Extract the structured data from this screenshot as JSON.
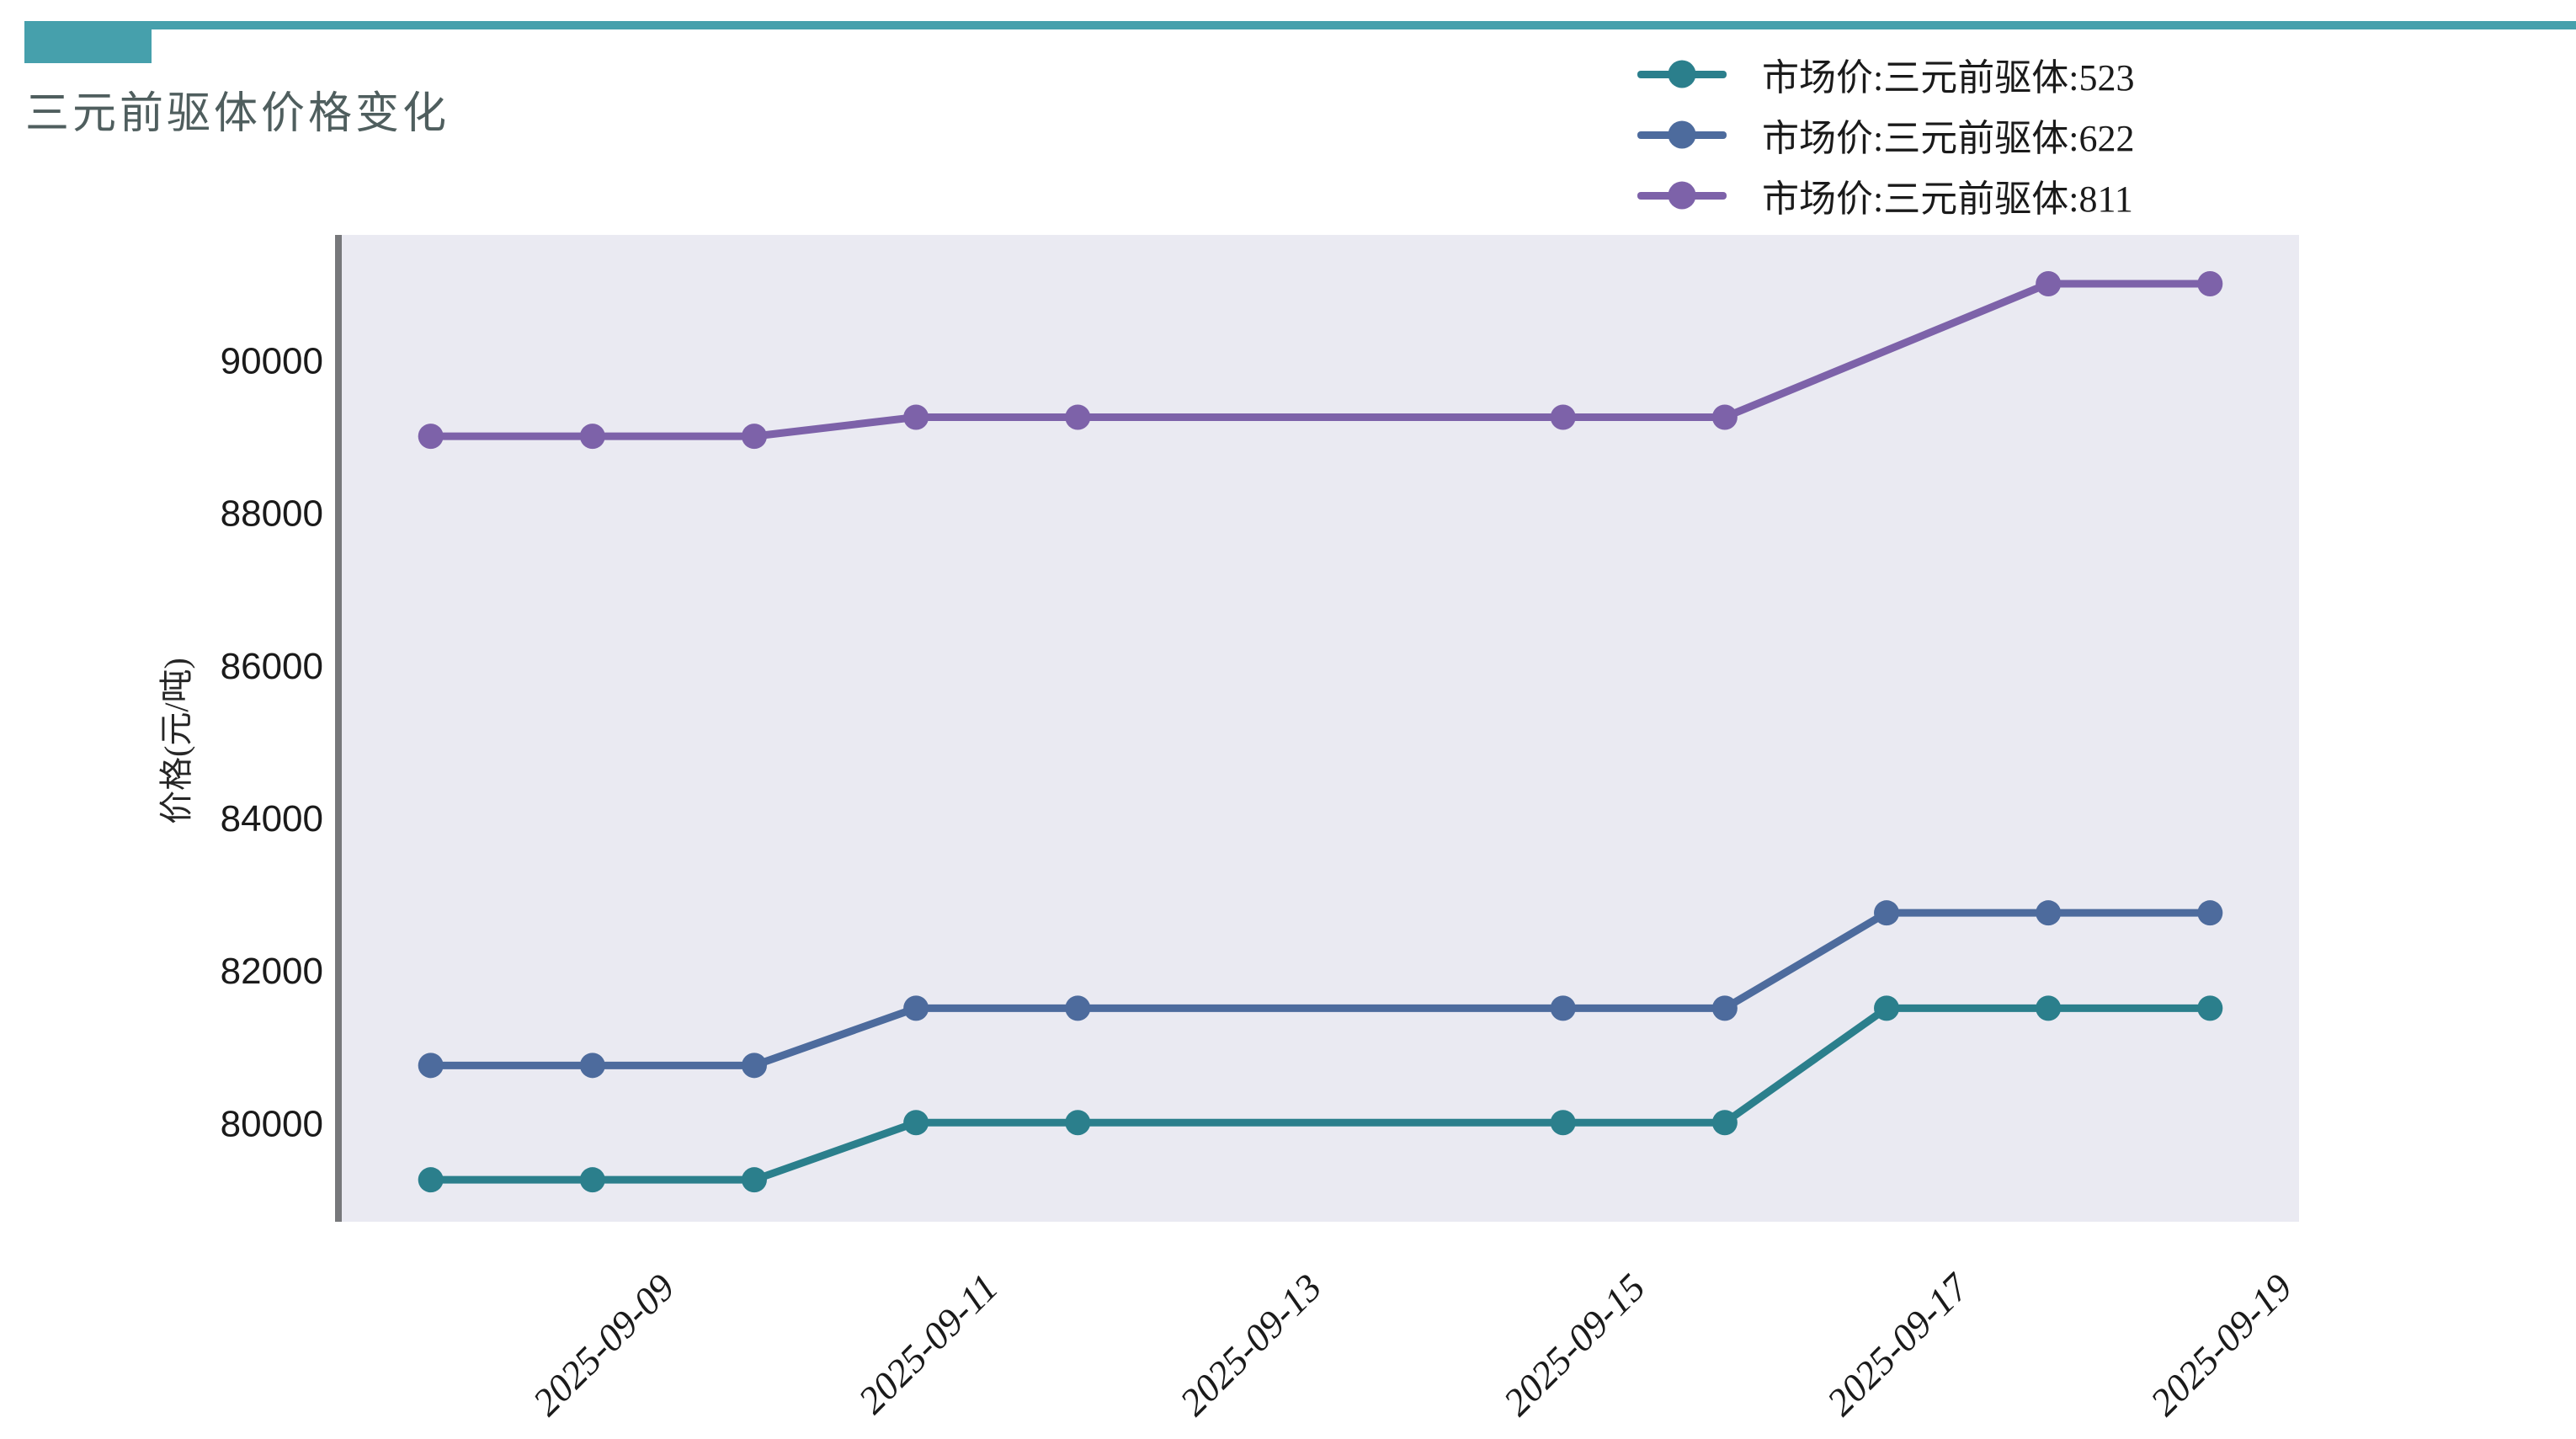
{
  "header": {
    "title": "三元前驱体价格变化",
    "accent_color": "#46a0ac"
  },
  "legend": {
    "items": [
      {
        "label": "市场价:三元前驱体:523",
        "color": "#2b7f8c"
      },
      {
        "label": "市场价:三元前驱体:622",
        "color": "#4d6b9d"
      },
      {
        "label": "市场价:三元前驱体:811",
        "color": "#7d62a9"
      }
    ]
  },
  "chart_data": {
    "type": "line",
    "title": "三元前驱体价格变化",
    "xlabel": "",
    "ylabel": "价格(元/吨)",
    "plot_background": "#eaeaf2",
    "grid": false,
    "legend_position": "top-right",
    "x_type": "date",
    "x_start_date": "2025-09-08",
    "xlim_days": [
      -0.55,
      11.55
    ],
    "ylim": [
      78700,
      91640
    ],
    "y_ticks": [
      80000,
      82000,
      84000,
      86000,
      88000,
      90000
    ],
    "x_tick_labels": [
      "2025-09-09",
      "2025-09-11",
      "2025-09-13",
      "2025-09-15",
      "2025-09-17",
      "2025-09-19"
    ],
    "marker": "circle",
    "series": [
      {
        "name": "市场价:三元前驱体:523",
        "color": "#2b7f8c",
        "dates": [
          "2025-09-08",
          "2025-09-09",
          "2025-09-10",
          "2025-09-11",
          "2025-09-12",
          "2025-09-15",
          "2025-09-16",
          "2025-09-17",
          "2025-09-18",
          "2025-09-19"
        ],
        "values": [
          79250,
          79250,
          79250,
          80000,
          80000,
          80000,
          80000,
          81500,
          81500,
          81500
        ]
      },
      {
        "name": "市场价:三元前驱体:622",
        "color": "#4d6b9d",
        "dates": [
          "2025-09-08",
          "2025-09-09",
          "2025-09-10",
          "2025-09-11",
          "2025-09-12",
          "2025-09-15",
          "2025-09-16",
          "2025-09-17",
          "2025-09-18",
          "2025-09-19"
        ],
        "values": [
          80750,
          80750,
          80750,
          81500,
          81500,
          81500,
          81500,
          82750,
          82750,
          82750
        ]
      },
      {
        "name": "市场价:三元前驱体:811",
        "color": "#7d62a9",
        "dates": [
          "2025-09-08",
          "2025-09-09",
          "2025-09-10",
          "2025-09-11",
          "2025-09-12",
          "2025-09-15",
          "2025-09-16",
          "2025-09-18",
          "2025-09-19"
        ],
        "values": [
          89000,
          89000,
          89000,
          89250,
          89250,
          89250,
          89250,
          91000,
          91000
        ]
      }
    ]
  }
}
